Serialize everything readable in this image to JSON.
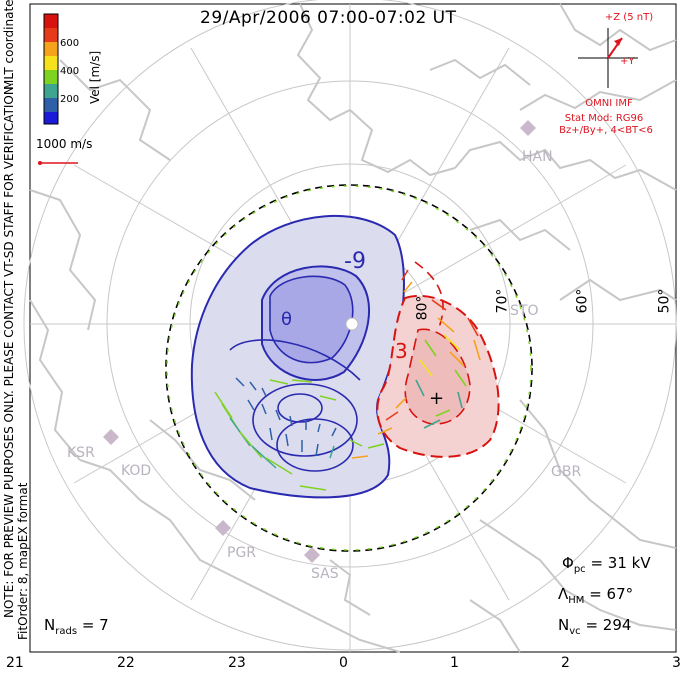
{
  "title": "29/Apr/2006 07:00-07:02 UT",
  "colorbar": {
    "title": "Vel [m/s]",
    "ticks": [
      "600",
      "400",
      "200"
    ],
    "colors": [
      "#1a1ad8",
      "#2e5fa8",
      "#3fa590",
      "#7ed321",
      "#f5e11c",
      "#f5a31c",
      "#e63a1a",
      "#d8130f"
    ]
  },
  "coordinates_label": "MLT coordinates",
  "scale": {
    "label": "1000 m/s"
  },
  "imf": {
    "z_label": "+Z (5 nT)",
    "y_label": "+Y",
    "source": "OMNI IMF",
    "model_line1": "Stat Mod: RG96",
    "model_line2": "Bz+/By+, 4<BT<6"
  },
  "watermark": "NOTE: FOR PREVIEW PURPOSES ONLY. PLEASE CONTACT VT-SD STAFF FOR VERIFICATION.",
  "fit_order": "FitOrder: 8, mapEX format",
  "stats": {
    "phi_pc_symbol": "Φ",
    "phi_pc_sub": "pc",
    "phi_pc_value": "= 31 kV",
    "lambda_symbol": "Λ",
    "lambda_sub": "HM",
    "lambda_value": "= 67°",
    "nvc_symbol": "N",
    "nvc_sub": "vc",
    "nvc_value": "= 294",
    "nrads_symbol": "N",
    "nrads_sub": "rads",
    "nrads_value": "= 7"
  },
  "mlt_labels": [
    "21",
    "22",
    "23",
    "0",
    "1",
    "2",
    "3"
  ],
  "latitude_labels": [
    "80°",
    "70°",
    "60°",
    "50°"
  ],
  "contour_labels": [
    "-9",
    "3"
  ],
  "radars": [
    "HAN",
    "STO",
    "KSR",
    "KOD",
    "GBR",
    "PGR",
    "SAS"
  ]
}
